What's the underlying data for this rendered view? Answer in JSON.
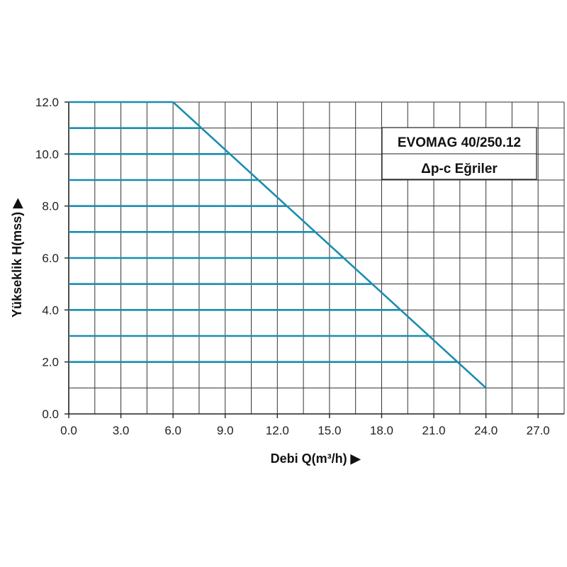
{
  "chart_data": {
    "type": "line",
    "title": "EVOMAG 40/250.12",
    "subtitle": "Δp-c Eğriler",
    "xlabel": "Debi Q(m³/h) ▶",
    "ylabel": "Yükseklik H(mss) ▶",
    "xlim": [
      0,
      28.5
    ],
    "ylim": [
      0,
      12
    ],
    "x_ticks": [
      "0.0",
      "3.0",
      "6.0",
      "9.0",
      "12.0",
      "15.0",
      "18.0",
      "21.0",
      "24.0",
      "27.0"
    ],
    "y_ticks": [
      "0.0",
      "2.0",
      "4.0",
      "6.0",
      "8.0",
      "10.0",
      "12.0"
    ],
    "grid": true,
    "grid_step_x": 1.5,
    "grid_step_y": 1.0,
    "limit_curve": {
      "x": [
        6.0,
        24.0
      ],
      "y": [
        12.0,
        1.0
      ]
    },
    "series": [
      {
        "x": [
          0,
          6.0
        ],
        "y": [
          12,
          12
        ]
      },
      {
        "x": [
          0,
          7.64
        ],
        "y": [
          11,
          11
        ]
      },
      {
        "x": [
          0,
          9.27
        ],
        "y": [
          10,
          10
        ]
      },
      {
        "x": [
          0,
          10.91
        ],
        "y": [
          9,
          9
        ]
      },
      {
        "x": [
          0,
          12.55
        ],
        "y": [
          8,
          8
        ]
      },
      {
        "x": [
          0,
          14.18
        ],
        "y": [
          7,
          7
        ]
      },
      {
        "x": [
          0,
          15.82
        ],
        "y": [
          6,
          6
        ]
      },
      {
        "x": [
          0,
          17.45
        ],
        "y": [
          5,
          5
        ]
      },
      {
        "x": [
          0,
          19.09
        ],
        "y": [
          4,
          4
        ]
      },
      {
        "x": [
          0,
          20.73
        ],
        "y": [
          3,
          3
        ]
      },
      {
        "x": [
          0,
          22.36
        ],
        "y": [
          2,
          2
        ]
      }
    ],
    "line_color": "#1a8db0"
  }
}
